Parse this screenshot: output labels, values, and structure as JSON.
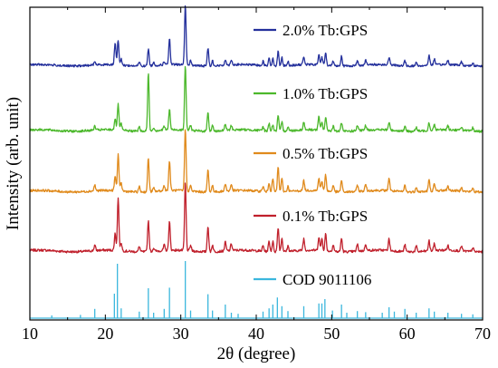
{
  "chart_data": {
    "type": "line",
    "title": "",
    "xlabel": "2θ (degree)",
    "ylabel": "Intensity (arb. unit)",
    "xlim": [
      10,
      70
    ],
    "x_ticks": [
      10,
      20,
      30,
      40,
      50,
      60,
      70
    ],
    "y_ticks": false,
    "grid": false,
    "legend": "labels placed beside each trace, right side",
    "reference": {
      "name": "COD 9011106",
      "color": "#3bb7dd",
      "sticks": [
        [
          12.9,
          0.05
        ],
        [
          16.7,
          0.06
        ],
        [
          18.6,
          0.17
        ],
        [
          21.2,
          0.45
        ],
        [
          21.6,
          1.0
        ],
        [
          22.1,
          0.18
        ],
        [
          24.5,
          0.12
        ],
        [
          25.7,
          0.55
        ],
        [
          26.4,
          0.1
        ],
        [
          27.8,
          0.17
        ],
        [
          28.5,
          0.56
        ],
        [
          30.6,
          1.05
        ],
        [
          31.3,
          0.14
        ],
        [
          33.6,
          0.44
        ],
        [
          34.2,
          0.14
        ],
        [
          35.9,
          0.25
        ],
        [
          36.7,
          0.1
        ],
        [
          37.6,
          0.08
        ],
        [
          40.9,
          0.12
        ],
        [
          41.7,
          0.18
        ],
        [
          42.2,
          0.25
        ],
        [
          42.8,
          0.38
        ],
        [
          43.4,
          0.22
        ],
        [
          44.2,
          0.13
        ],
        [
          46.3,
          0.22
        ],
        [
          48.3,
          0.27
        ],
        [
          48.7,
          0.27
        ],
        [
          49.1,
          0.35
        ],
        [
          50.1,
          0.14
        ],
        [
          51.3,
          0.25
        ],
        [
          52.0,
          0.1
        ],
        [
          53.4,
          0.13
        ],
        [
          54.5,
          0.11
        ],
        [
          56.7,
          0.1
        ],
        [
          57.6,
          0.2
        ],
        [
          58.3,
          0.12
        ],
        [
          59.7,
          0.17
        ],
        [
          61.2,
          0.1
        ],
        [
          62.9,
          0.18
        ],
        [
          63.6,
          0.12
        ],
        [
          65.4,
          0.1
        ],
        [
          67.2,
          0.08
        ],
        [
          68.7,
          0.07
        ]
      ]
    },
    "series": [
      {
        "name": "0.1% Tb:GPS",
        "color": "#c0202c",
        "peaks": [
          [
            18.6,
            0.08
          ],
          [
            21.3,
            0.25
          ],
          [
            21.7,
            0.78
          ],
          [
            22.1,
            0.12
          ],
          [
            24.5,
            0.08
          ],
          [
            25.7,
            0.46
          ],
          [
            26.4,
            0.05
          ],
          [
            27.8,
            0.08
          ],
          [
            28.5,
            0.42
          ],
          [
            30.6,
            1.0
          ],
          [
            31.3,
            0.08
          ],
          [
            33.6,
            0.38
          ],
          [
            34.2,
            0.1
          ],
          [
            35.9,
            0.13
          ],
          [
            36.7,
            0.1
          ],
          [
            40.9,
            0.08
          ],
          [
            41.7,
            0.15
          ],
          [
            42.2,
            0.15
          ],
          [
            42.9,
            0.36
          ],
          [
            43.4,
            0.2
          ],
          [
            44.2,
            0.08
          ],
          [
            46.3,
            0.17
          ],
          [
            48.3,
            0.2
          ],
          [
            48.7,
            0.18
          ],
          [
            49.2,
            0.25
          ],
          [
            50.2,
            0.1
          ],
          [
            51.3,
            0.2
          ],
          [
            53.4,
            0.1
          ],
          [
            54.5,
            0.1
          ],
          [
            57.6,
            0.17
          ],
          [
            59.7,
            0.1
          ],
          [
            61.2,
            0.08
          ],
          [
            62.9,
            0.15
          ],
          [
            63.6,
            0.1
          ],
          [
            65.4,
            0.07
          ],
          [
            67.2,
            0.07
          ],
          [
            68.7,
            0.06
          ]
        ]
      },
      {
        "name": "0.5% Tb:GPS",
        "color": "#e08a1c",
        "peaks": [
          [
            18.6,
            0.09
          ],
          [
            21.3,
            0.22
          ],
          [
            21.7,
            0.56
          ],
          [
            22.1,
            0.12
          ],
          [
            24.5,
            0.08
          ],
          [
            25.7,
            0.52
          ],
          [
            26.4,
            0.05
          ],
          [
            27.8,
            0.08
          ],
          [
            28.5,
            0.46
          ],
          [
            30.6,
            0.96
          ],
          [
            31.3,
            0.08
          ],
          [
            33.6,
            0.34
          ],
          [
            34.2,
            0.1
          ],
          [
            35.9,
            0.12
          ],
          [
            36.7,
            0.1
          ],
          [
            40.9,
            0.08
          ],
          [
            41.7,
            0.14
          ],
          [
            42.2,
            0.2
          ],
          [
            42.9,
            0.38
          ],
          [
            43.4,
            0.2
          ],
          [
            44.2,
            0.08
          ],
          [
            46.3,
            0.15
          ],
          [
            48.3,
            0.2
          ],
          [
            48.7,
            0.15
          ],
          [
            49.2,
            0.25
          ],
          [
            50.2,
            0.1
          ],
          [
            51.3,
            0.18
          ],
          [
            53.4,
            0.1
          ],
          [
            54.5,
            0.1
          ],
          [
            57.6,
            0.2
          ],
          [
            59.7,
            0.1
          ],
          [
            61.2,
            0.08
          ],
          [
            62.9,
            0.17
          ],
          [
            63.6,
            0.1
          ],
          [
            65.4,
            0.07
          ],
          [
            67.2,
            0.07
          ],
          [
            68.7,
            0.06
          ]
        ]
      },
      {
        "name": "1.0% Tb:GPS",
        "color": "#4cb82c",
        "peaks": [
          [
            18.6,
            0.06
          ],
          [
            21.3,
            0.18
          ],
          [
            21.7,
            0.4
          ],
          [
            22.1,
            0.1
          ],
          [
            24.5,
            0.07
          ],
          [
            25.7,
            0.88
          ],
          [
            26.4,
            0.05
          ],
          [
            27.8,
            0.06
          ],
          [
            28.5,
            0.32
          ],
          [
            30.6,
            1.0
          ],
          [
            31.3,
            0.08
          ],
          [
            33.6,
            0.3
          ],
          [
            34.2,
            0.09
          ],
          [
            35.9,
            0.1
          ],
          [
            36.7,
            0.07
          ],
          [
            40.9,
            0.06
          ],
          [
            41.7,
            0.12
          ],
          [
            42.2,
            0.1
          ],
          [
            42.9,
            0.24
          ],
          [
            43.4,
            0.14
          ],
          [
            44.2,
            0.06
          ],
          [
            46.3,
            0.12
          ],
          [
            48.3,
            0.2
          ],
          [
            48.7,
            0.12
          ],
          [
            49.2,
            0.2
          ],
          [
            50.2,
            0.07
          ],
          [
            51.3,
            0.13
          ],
          [
            53.4,
            0.08
          ],
          [
            54.5,
            0.07
          ],
          [
            57.6,
            0.12
          ],
          [
            59.7,
            0.07
          ],
          [
            61.2,
            0.06
          ],
          [
            62.9,
            0.12
          ],
          [
            63.6,
            0.09
          ],
          [
            65.4,
            0.06
          ],
          [
            67.2,
            0.06
          ],
          [
            68.7,
            0.05
          ]
        ]
      },
      {
        "name": "2.0% Tb:GPS",
        "color": "#24309c",
        "peaks": [
          [
            18.6,
            0.06
          ],
          [
            21.3,
            0.38
          ],
          [
            21.7,
            0.42
          ],
          [
            22.1,
            0.1
          ],
          [
            24.5,
            0.07
          ],
          [
            25.7,
            0.28
          ],
          [
            26.4,
            0.05
          ],
          [
            27.8,
            0.06
          ],
          [
            28.5,
            0.44
          ],
          [
            30.6,
            1.0
          ],
          [
            31.3,
            0.08
          ],
          [
            33.6,
            0.3
          ],
          [
            34.2,
            0.09
          ],
          [
            35.9,
            0.1
          ],
          [
            36.7,
            0.09
          ],
          [
            40.9,
            0.07
          ],
          [
            41.7,
            0.14
          ],
          [
            42.2,
            0.12
          ],
          [
            42.9,
            0.24
          ],
          [
            43.4,
            0.14
          ],
          [
            44.2,
            0.07
          ],
          [
            46.3,
            0.14
          ],
          [
            48.3,
            0.17
          ],
          [
            48.7,
            0.13
          ],
          [
            49.2,
            0.2
          ],
          [
            50.2,
            0.08
          ],
          [
            51.3,
            0.17
          ],
          [
            53.4,
            0.08
          ],
          [
            54.5,
            0.08
          ],
          [
            57.6,
            0.13
          ],
          [
            59.7,
            0.08
          ],
          [
            61.2,
            0.06
          ],
          [
            62.9,
            0.17
          ],
          [
            63.6,
            0.1
          ],
          [
            65.4,
            0.07
          ],
          [
            67.2,
            0.06
          ],
          [
            68.7,
            0.05
          ]
        ]
      }
    ]
  }
}
